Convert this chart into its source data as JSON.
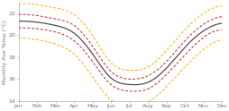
{
  "months": [
    "Jan",
    "Feb",
    "Mar",
    "Apr",
    "May",
    "Jun",
    "Jul",
    "Aug",
    "Sep",
    "Oct",
    "Nov",
    "Dec"
  ],
  "median": [
    21.3,
    21.2,
    20.9,
    20.2,
    18.3,
    16.1,
    15.5,
    15.7,
    17.0,
    18.9,
    20.4,
    21.1
  ],
  "p25": [
    20.7,
    20.6,
    20.3,
    19.5,
    17.6,
    15.5,
    14.9,
    15.1,
    16.4,
    18.2,
    19.8,
    20.5
  ],
  "p75": [
    21.9,
    21.8,
    21.5,
    20.9,
    19.0,
    16.7,
    16.0,
    16.3,
    17.6,
    19.5,
    21.0,
    21.7
  ],
  "min": [
    19.8,
    19.6,
    19.2,
    18.3,
    16.2,
    14.1,
    13.6,
    13.9,
    15.3,
    17.1,
    18.7,
    19.6
  ],
  "max": [
    22.9,
    22.8,
    22.5,
    21.9,
    20.0,
    17.5,
    16.8,
    17.1,
    18.6,
    20.5,
    22.0,
    22.7
  ],
  "ylim": [
    14,
    23
  ],
  "yticks": [
    14,
    16,
    18,
    20,
    22
  ],
  "ylabel": "Monthly Ave Temp (°C)",
  "median_color": "#4d4d4d",
  "p25_75_color": "#cc2222",
  "min_max_color": "#ffaa00",
  "background_color": "#ffffff",
  "linewidth_median": 0.9,
  "linewidth_bands": 0.7,
  "dash_on": 3,
  "dash_off": 2
}
